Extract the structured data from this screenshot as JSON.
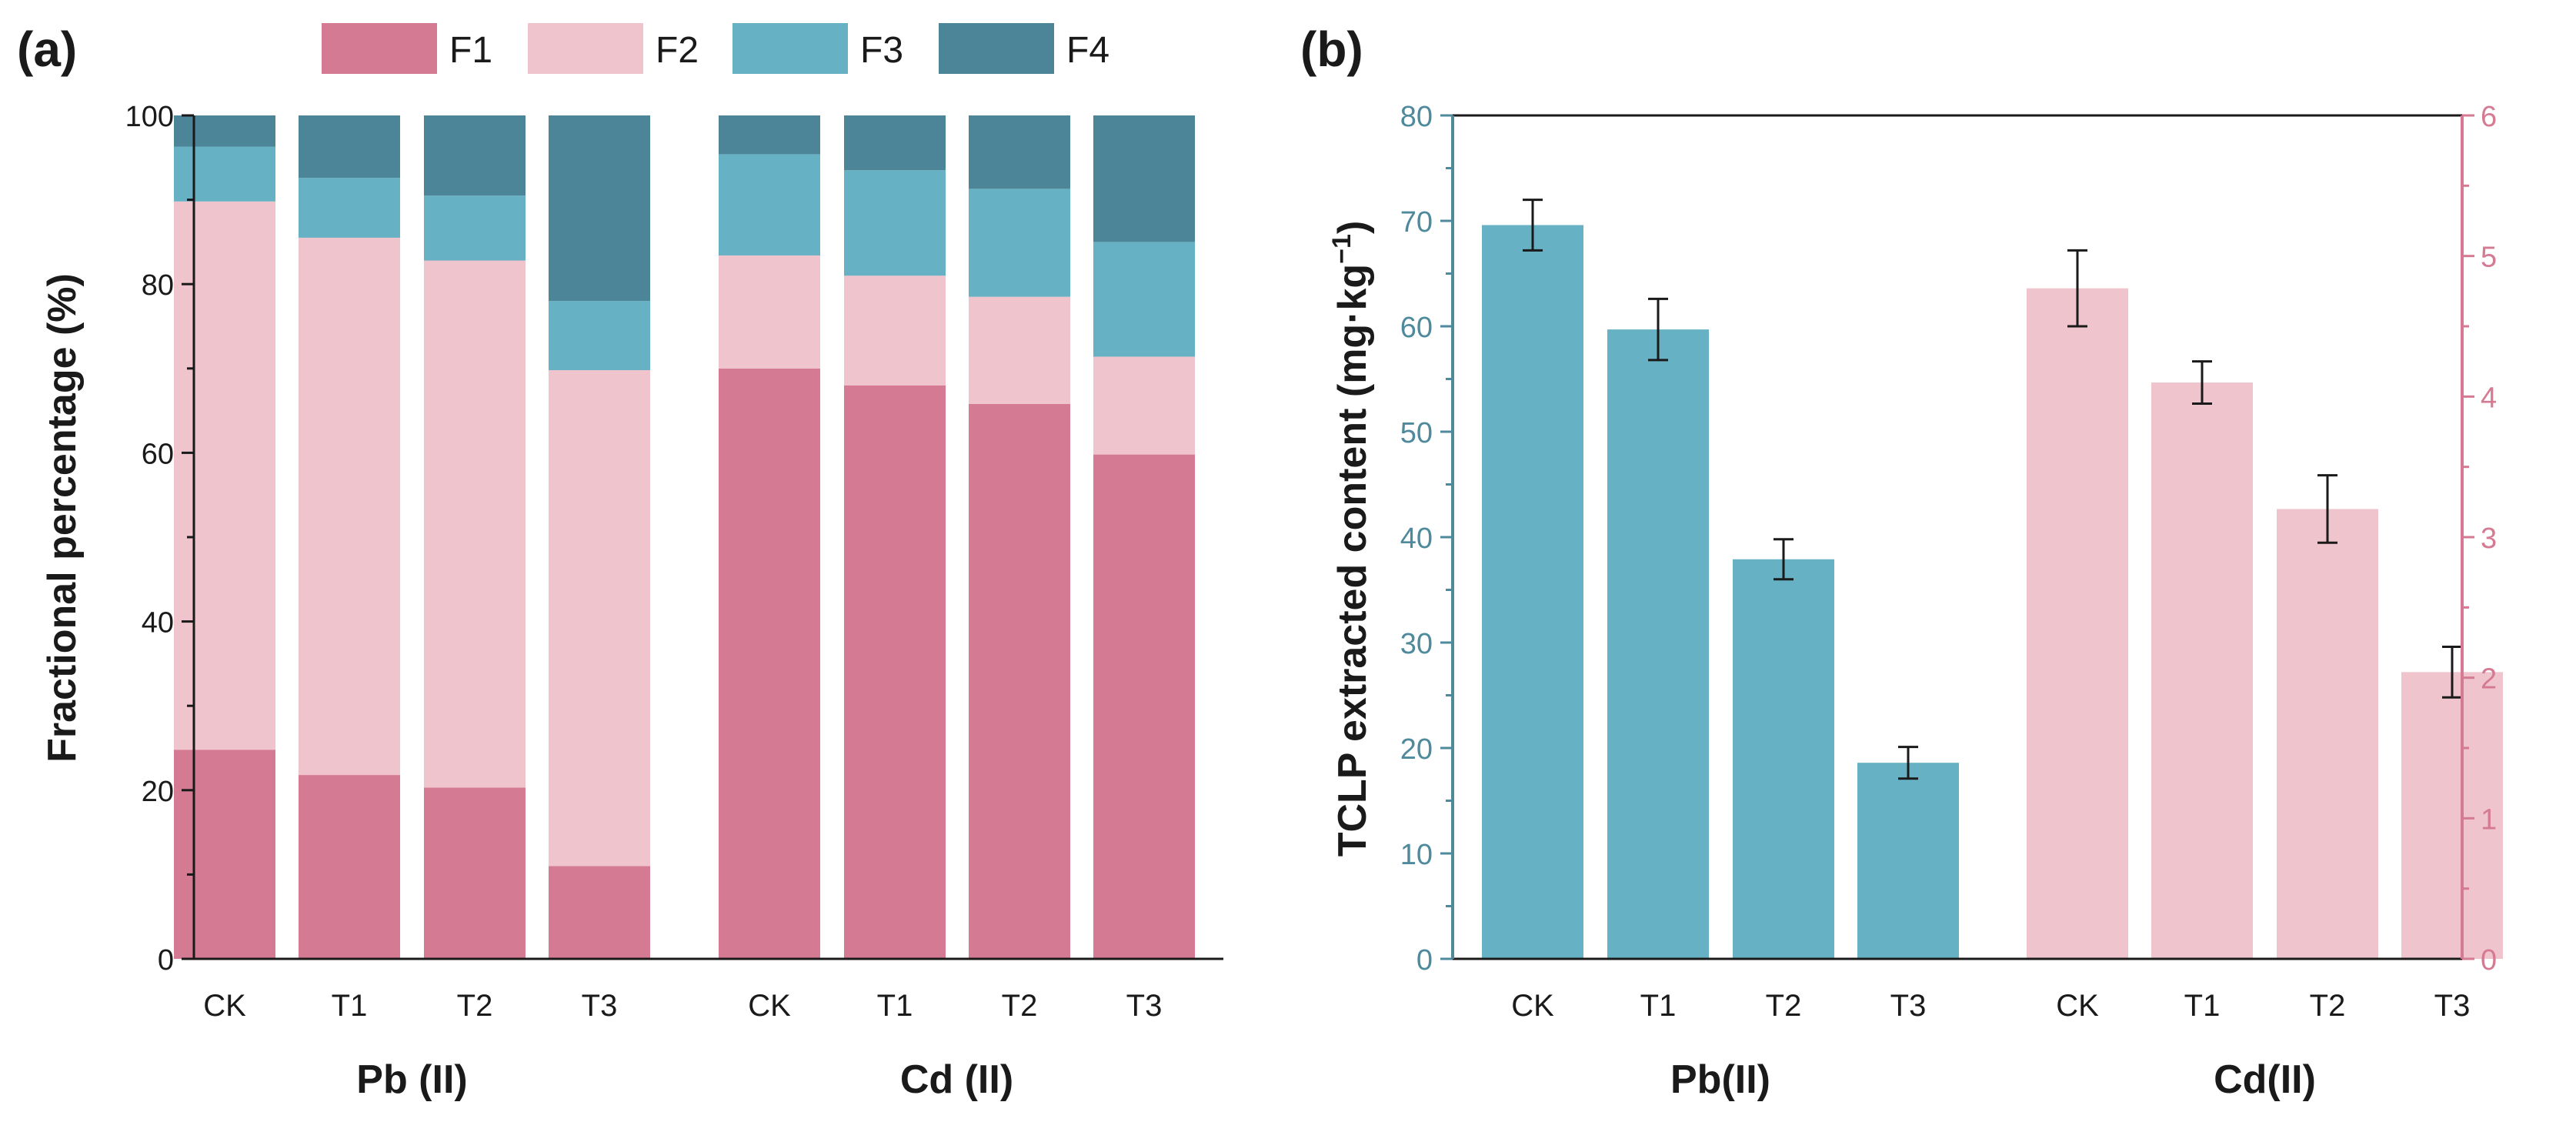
{
  "colors": {
    "F1": "#d57a93",
    "F2": "#efc4cc",
    "F3": "#66b1c3",
    "F4": "#4c8597",
    "pb_bar": "#66b1c3",
    "cd_bar": "#efc4cc",
    "left_axis_b": "#4f8a9c",
    "right_axis_b": "#d57a93"
  },
  "chart_data": [
    {
      "id": "a",
      "type": "bar",
      "stacked": true,
      "panel_label": "(a)",
      "ylabel": "Fractional percentage (%)",
      "ylim": [
        0,
        100
      ],
      "yticks": [
        0,
        20,
        40,
        60,
        80,
        100
      ],
      "grid": false,
      "legend": {
        "position": "top",
        "entries": [
          "F1",
          "F2",
          "F3",
          "F4"
        ]
      },
      "groups": [
        {
          "name": "Pb (II)",
          "categories": [
            "CK",
            "T1",
            "T2",
            "T3"
          ]
        },
        {
          "name": "Cd (II)",
          "categories": [
            "CK",
            "T1",
            "T2",
            "T3"
          ]
        }
      ],
      "series": [
        {
          "name": "F1",
          "values": [
            24.8,
            21.8,
            20.3,
            11.0,
            70.0,
            68.0,
            65.8,
            59.8
          ]
        },
        {
          "name": "F2",
          "values": [
            65.0,
            63.7,
            62.5,
            58.8,
            13.4,
            13.0,
            12.7,
            11.6
          ]
        },
        {
          "name": "F3",
          "values": [
            6.5,
            7.1,
            7.7,
            8.2,
            12.0,
            12.5,
            12.8,
            13.6
          ]
        },
        {
          "name": "F4",
          "values": [
            3.7,
            7.4,
            9.5,
            22.0,
            4.6,
            6.5,
            8.7,
            15.0
          ]
        }
      ]
    },
    {
      "id": "b",
      "type": "bar",
      "panel_label": "(b)",
      "ylabel": "TCLP extracted content (mg·kg",
      "ylabel_sup": "−1",
      "ylabel_close": ")",
      "ylim_left": [
        0,
        80
      ],
      "yticks_left": [
        0,
        10,
        20,
        30,
        40,
        50,
        60,
        70,
        80
      ],
      "ylim_right": [
        0,
        6
      ],
      "yticks_right": [
        0,
        1,
        2,
        3,
        4,
        5,
        6
      ],
      "grid": false,
      "groups": [
        {
          "name": "Pb(II)",
          "axis": "left",
          "categories": [
            "CK",
            "T1",
            "T2",
            "T3"
          ],
          "values": [
            69.6,
            59.7,
            37.9,
            18.6
          ],
          "errors": [
            2.4,
            2.9,
            1.9,
            1.5
          ]
        },
        {
          "name": "Cd(II)",
          "axis": "right",
          "categories": [
            "CK",
            "T1",
            "T2",
            "T3"
          ],
          "values": [
            4.77,
            4.1,
            3.2,
            2.04
          ],
          "errors": [
            0.27,
            0.15,
            0.24,
            0.18
          ]
        }
      ]
    }
  ]
}
